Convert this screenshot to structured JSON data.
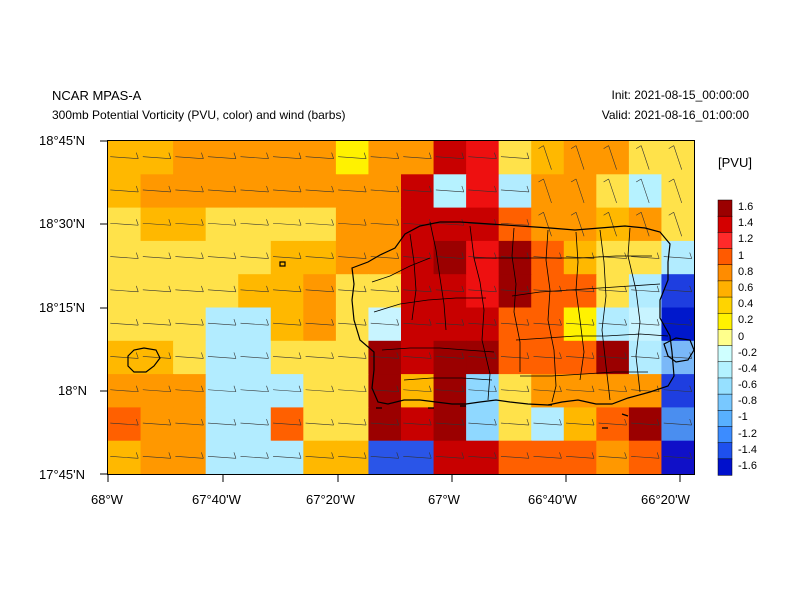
{
  "header": {
    "model_name": "NCAR MPAS-A",
    "field_description": "300mb Potential Vorticity (PVU, color) and wind (barbs)",
    "init_time": "Init: 2021-08-15_00:00:00",
    "valid_time": "Valid: 2021-08-16_01:00:00"
  },
  "axes": {
    "y_ticks": [
      "18°45'N",
      "18°30'N",
      "18°15'N",
      "18°N",
      "17°45'N"
    ],
    "x_ticks": [
      "68°W",
      "67°40'W",
      "67°20'W",
      "67°W",
      "66°40'W",
      "66°20'W"
    ]
  },
  "colorbar": {
    "units": "[PVU]",
    "labels": [
      "1.6",
      "1.4",
      "1.2",
      "1",
      "0.8",
      "0.6",
      "0.4",
      "0.2",
      "0",
      "-0.2",
      "-0.4",
      "-0.6",
      "-0.8",
      "-1",
      "-1.2",
      "-1.4",
      "-1.6"
    ],
    "colors": [
      "#9b0000",
      "#d40000",
      "#ff2a2a",
      "#ff5a00",
      "#ff8c00",
      "#ffb000",
      "#ffd400",
      "#fff200",
      "#ffff8c",
      "#cfffff",
      "#b4f2ff",
      "#96e0ff",
      "#78c8ff",
      "#58b0ff",
      "#3c8cff",
      "#1e50ee",
      "#0010cc"
    ]
  },
  "chart_data": {
    "type": "heatmap",
    "title": "300mb Potential Vorticity (PVU, color) and wind (barbs)",
    "x_range": [
      "68°W",
      "66°17'W"
    ],
    "y_range": [
      "17°45'N",
      "18°45'N"
    ],
    "columns": 18,
    "rows": 10,
    "grid_cells": [
      "ppoooooroodlqpooqq",
      "poooooooodhlwooqhq",
      "qppqqqqoodddnoopoq",
      "qqqqqppoodclcnpqqw",
      "qqqqppoqqddlcnnqwj",
      "qqqwwpoqmdddnnrwmi",
      "ppqwwqqqcdccnnncwk",
      "ooowwwqqcpcfqooooj",
      "noowwnqqcdcfqwpnce",
      "poowwwppbbddnnnona"
    ]
  }
}
